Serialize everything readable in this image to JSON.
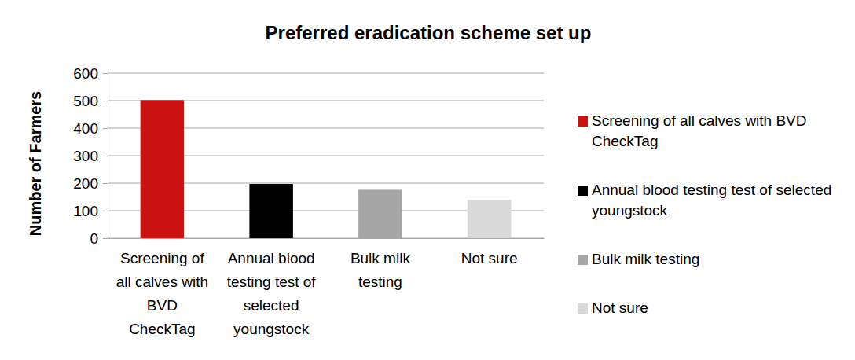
{
  "chart_data": {
    "type": "bar",
    "title": "Preferred eradication scheme set up",
    "y_label": "Number of Farmers",
    "categories": [
      "Screening of all calves with BVD CheckTag",
      "Annual blood testing test of selected youngstock",
      "Bulk milk testing",
      "Not sure"
    ],
    "values": [
      502,
      197,
      176,
      140
    ],
    "colors": [
      "#cc1111",
      "#000000",
      "#a6a6a6",
      "#d9d9d9"
    ],
    "ylim": [
      0,
      600
    ],
    "yticks": [
      0,
      100,
      200,
      300,
      400,
      500,
      600
    ],
    "grid": true,
    "legend": "right"
  }
}
